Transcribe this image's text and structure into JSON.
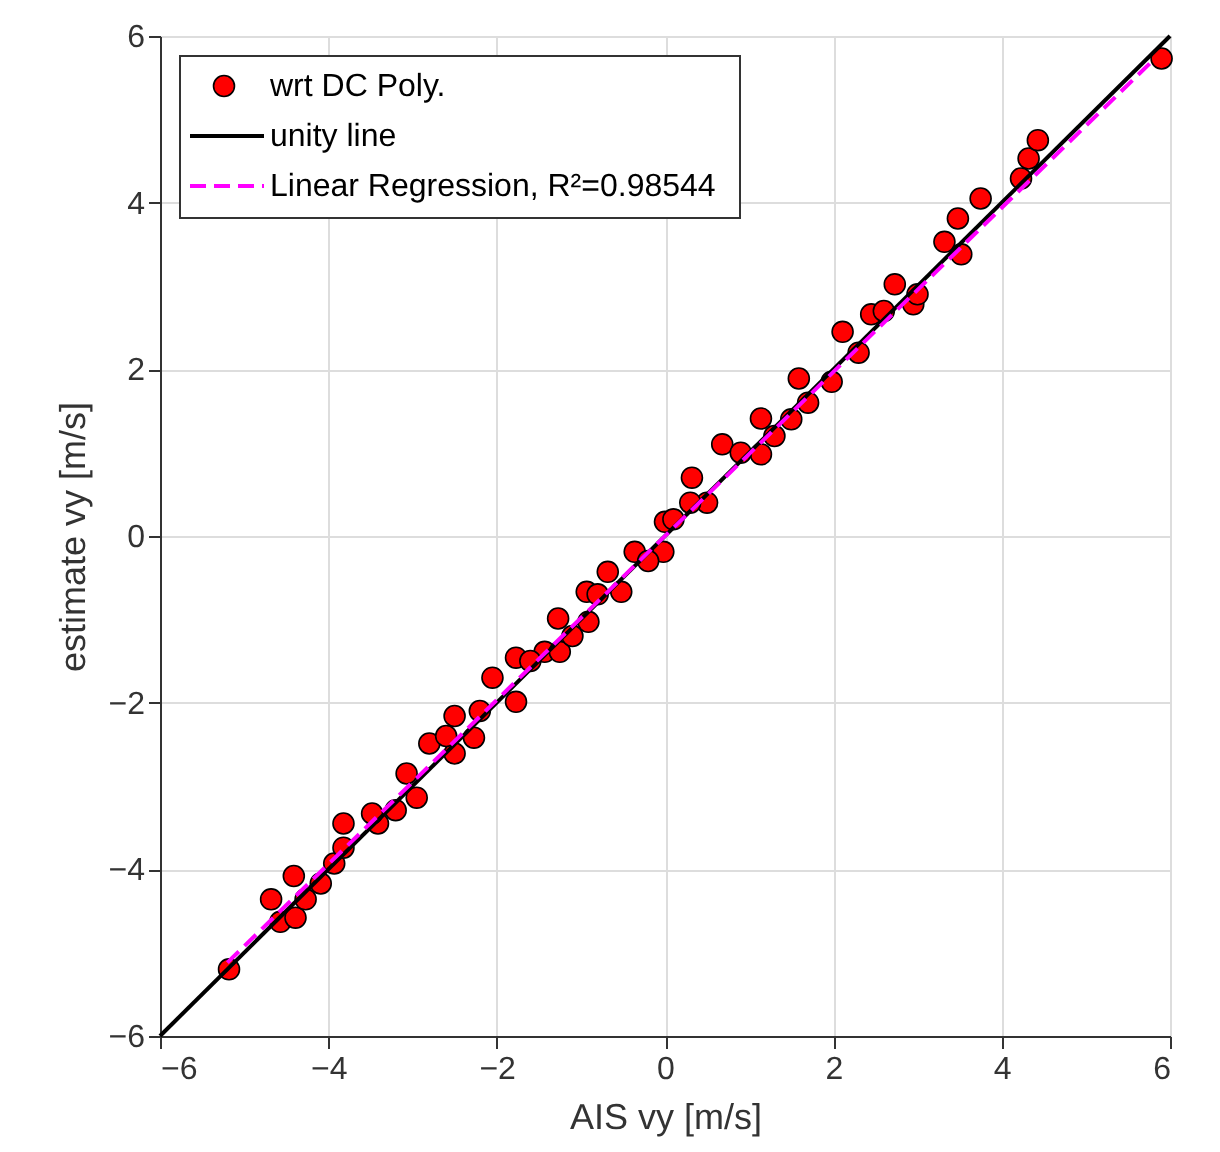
{
  "chart_data": {
    "type": "scatter",
    "xlabel": "AIS vy [m/s]",
    "ylabel": "estimate vy [m/s]",
    "xlim": [
      -6,
      6
    ],
    "ylim": [
      -6,
      6
    ],
    "xticks": [
      -6,
      -4,
      -2,
      0,
      2,
      4,
      6
    ],
    "yticks": [
      -6,
      -4,
      -2,
      0,
      2,
      4,
      6
    ],
    "grid": true,
    "legend": "top left",
    "series": [
      {
        "name": "wrt DC Poly.",
        "color": "#ff0000",
        "marker": "circle",
        "x": [
          -5.18,
          -4.68,
          -4.57,
          -4.39,
          -4.41,
          -4.27,
          -4.09,
          -3.93,
          -3.82,
          -3.82,
          -3.41,
          -3.48,
          -3.2,
          -2.95,
          -3.07,
          -2.8,
          -2.5,
          -2.5,
          -2.27,
          -2.05,
          -1.77,
          -1.77,
          -1.43,
          -1.25,
          -1.27,
          -0.91,
          -0.93,
          -0.68,
          -0.52,
          -0.36,
          -0.02,
          0.0,
          0.32,
          0.68,
          1.14,
          1.14,
          1.59,
          1.98,
          2.11,
          2.45,
          2.95,
          2.73,
          3.32,
          3.52,
          3.48,
          3.75,
          4.23,
          4.32,
          4.43,
          5.9,
          -2.6,
          -2.2,
          -1.6,
          -1.1,
          -0.8,
          -0.2,
          0.1,
          0.5,
          0.9,
          1.3,
          1.7,
          2.3,
          2.6,
          3.0,
          1.5,
          0.3
        ],
        "values": [
          -5.2,
          -4.36,
          -4.63,
          -4.58,
          -4.08,
          -4.36,
          -4.17,
          -3.93,
          -3.45,
          -3.74,
          -3.45,
          -3.33,
          -3.29,
          -3.14,
          -2.85,
          -2.49,
          -2.61,
          -2.16,
          -2.42,
          -1.7,
          -1.99,
          -1.46,
          -1.39,
          -1.39,
          -0.99,
          -1.03,
          -0.67,
          -0.43,
          -0.67,
          -0.19,
          -0.19,
          0.17,
          0.7,
          1.1,
          1.41,
          0.98,
          1.89,
          1.85,
          2.45,
          2.66,
          2.78,
          3.02,
          3.53,
          3.38,
          3.81,
          4.05,
          4.29,
          4.53,
          4.75,
          5.73,
          -2.4,
          -2.1,
          -1.5,
          -1.2,
          -0.7,
          -0.3,
          0.2,
          0.4,
          1.0,
          1.2,
          1.6,
          2.2,
          2.7,
          2.9,
          1.4,
          0.4
        ]
      },
      {
        "name": "unity line",
        "type": "line",
        "color": "#000000",
        "line_style": "solid",
        "x": [
          -6,
          6
        ],
        "values": [
          -6,
          6
        ]
      },
      {
        "name": "Linear Regression, R²=0.98544",
        "type": "line",
        "color": "#ff00ff",
        "line_style": "dashed",
        "x": [
          -5.2,
          5.8
        ],
        "values": [
          -5.12,
          5.71
        ]
      }
    ]
  }
}
